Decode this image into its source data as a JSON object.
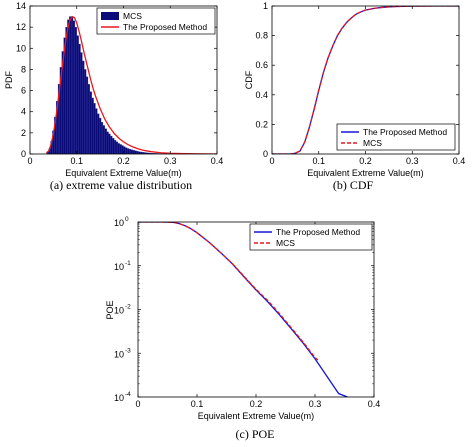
{
  "chart_data": [
    {
      "type": "bar",
      "caption": "(a) extreme value distribution",
      "xlabel": "Equivalent Extreme Value(m)",
      "ylabel": "PDF",
      "xlim": [
        0,
        0.4
      ],
      "ylim": [
        0,
        14
      ],
      "xticks": [
        "0",
        "0.1",
        "0.2",
        "0.3",
        "0.4"
      ],
      "yticks": [
        "0",
        "2",
        "4",
        "6",
        "8",
        "10",
        "12",
        "14"
      ],
      "legend_position": "top-right",
      "colors": {
        "bars": "#0a0a78",
        "line": "#e8191d"
      },
      "series": [
        {
          "name": "MCS",
          "kind": "histogram",
          "bin_width": 0.004,
          "x": [
            0.038,
            0.042,
            0.046,
            0.05,
            0.054,
            0.058,
            0.062,
            0.066,
            0.07,
            0.074,
            0.078,
            0.082,
            0.086,
            0.09,
            0.094,
            0.098,
            0.102,
            0.106,
            0.11,
            0.114,
            0.118,
            0.122,
            0.126,
            0.13,
            0.134,
            0.138,
            0.142,
            0.146,
            0.15,
            0.154,
            0.158,
            0.162,
            0.166,
            0.17,
            0.174,
            0.178,
            0.182,
            0.186,
            0.19,
            0.194,
            0.198,
            0.202,
            0.206,
            0.21,
            0.214,
            0.218,
            0.222,
            0.226,
            0.23,
            0.234,
            0.238,
            0.242,
            0.246,
            0.25,
            0.254,
            0.258,
            0.262,
            0.266,
            0.27,
            0.274,
            0.278,
            0.282,
            0.286,
            0.29,
            0.294,
            0.298
          ],
          "values": [
            0.2,
            0.5,
            1.2,
            2.2,
            3.5,
            5.0,
            6.6,
            8.2,
            9.7,
            11.0,
            12.0,
            12.7,
            13.0,
            13.0,
            12.6,
            12.0,
            11.2,
            10.4,
            9.6,
            8.8,
            8.0,
            7.3,
            6.6,
            5.9,
            5.3,
            4.8,
            4.3,
            3.8,
            3.4,
            3.0,
            2.7,
            2.4,
            2.1,
            1.9,
            1.7,
            1.5,
            1.3,
            1.15,
            1.0,
            0.9,
            0.8,
            0.7,
            0.6,
            0.52,
            0.45,
            0.4,
            0.35,
            0.3,
            0.26,
            0.22,
            0.19,
            0.16,
            0.14,
            0.12,
            0.1,
            0.09,
            0.08,
            0.07,
            0.06,
            0.05,
            0.045,
            0.04,
            0.035,
            0.03,
            0.025,
            0.02
          ]
        },
        {
          "name": "The Proposed Method",
          "kind": "line",
          "x": [
            0.035,
            0.04,
            0.045,
            0.05,
            0.055,
            0.06,
            0.065,
            0.07,
            0.075,
            0.08,
            0.085,
            0.09,
            0.095,
            0.1,
            0.105,
            0.11,
            0.115,
            0.12,
            0.125,
            0.13,
            0.135,
            0.14,
            0.15,
            0.16,
            0.17,
            0.18,
            0.19,
            0.2,
            0.21,
            0.22,
            0.23,
            0.24,
            0.25,
            0.26,
            0.28,
            0.3,
            0.32,
            0.35,
            0.4
          ],
          "values": [
            0.1,
            0.3,
            0.9,
            1.9,
            3.3,
            5.0,
            6.8,
            8.6,
            10.3,
            11.7,
            12.6,
            13.0,
            12.9,
            12.4,
            11.6,
            10.7,
            9.7,
            8.8,
            7.9,
            7.0,
            6.2,
            5.5,
            4.3,
            3.3,
            2.55,
            1.95,
            1.5,
            1.15,
            0.88,
            0.67,
            0.51,
            0.38,
            0.29,
            0.22,
            0.12,
            0.07,
            0.04,
            0.02,
            0.0
          ]
        }
      ]
    },
    {
      "type": "line",
      "caption": "(b) CDF",
      "xlabel": "Equivalent Extreme Value(m)",
      "ylabel": "CDF",
      "xlim": [
        0,
        0.4
      ],
      "ylim": [
        0,
        1
      ],
      "xticks": [
        "0",
        "0.1",
        "0.2",
        "0.3",
        "0.4"
      ],
      "yticks": [
        "0",
        "0.2",
        "0.4",
        "0.6",
        "0.8",
        "1"
      ],
      "legend_position": "bottom-right",
      "series": [
        {
          "name": "The Proposed Method",
          "color": "#1515d6",
          "dash": "solid",
          "x": [
            0.0,
            0.04,
            0.05,
            0.06,
            0.07,
            0.08,
            0.09,
            0.1,
            0.11,
            0.12,
            0.13,
            0.14,
            0.15,
            0.16,
            0.17,
            0.18,
            0.19,
            0.2,
            0.22,
            0.24,
            0.26,
            0.28,
            0.3,
            0.35,
            0.4
          ],
          "values": [
            0.0,
            0.0,
            0.005,
            0.02,
            0.08,
            0.18,
            0.3,
            0.43,
            0.55,
            0.65,
            0.73,
            0.8,
            0.85,
            0.89,
            0.92,
            0.945,
            0.96,
            0.972,
            0.985,
            0.992,
            0.996,
            0.998,
            0.999,
            1.0,
            1.0
          ]
        },
        {
          "name": "MCS",
          "color": "#e8191d",
          "dash": "dashed",
          "x": [
            0.0,
            0.04,
            0.05,
            0.06,
            0.07,
            0.08,
            0.09,
            0.1,
            0.11,
            0.12,
            0.13,
            0.14,
            0.15,
            0.16,
            0.17,
            0.18,
            0.19,
            0.2,
            0.22,
            0.24,
            0.26,
            0.28,
            0.3,
            0.35,
            0.4
          ],
          "values": [
            0.0,
            0.0,
            0.006,
            0.022,
            0.082,
            0.182,
            0.302,
            0.432,
            0.552,
            0.651,
            0.731,
            0.801,
            0.851,
            0.891,
            0.921,
            0.946,
            0.961,
            0.973,
            0.985,
            0.992,
            0.996,
            0.998,
            0.999,
            1.0,
            1.0
          ]
        }
      ]
    },
    {
      "type": "line",
      "caption": "(c) POE",
      "xlabel": "Equivalent Extreme Value(m)",
      "ylabel": "POE",
      "xlim": [
        0,
        0.4
      ],
      "ylim": [
        0.0001,
        1
      ],
      "y_scale": "log",
      "xticks": [
        "0",
        "0.1",
        "0.2",
        "0.3",
        "0.4"
      ],
      "yticks": [
        "10",
        "10",
        "10",
        "10",
        "10"
      ],
      "ytick_exponents": [
        "-4",
        "-3",
        "-2",
        "-1",
        "0"
      ],
      "ytick_values": [
        0.0001,
        0.001,
        0.01,
        0.1,
        1
      ],
      "legend_position": "top-right",
      "series": [
        {
          "name": "The Proposed Method",
          "color": "#1515d6",
          "dash": "solid",
          "x": [
            0.0,
            0.04,
            0.05,
            0.06,
            0.07,
            0.08,
            0.09,
            0.1,
            0.12,
            0.14,
            0.16,
            0.18,
            0.2,
            0.22,
            0.24,
            0.26,
            0.28,
            0.3,
            0.32,
            0.34,
            0.355
          ],
          "values": [
            1.0,
            1.0,
            0.995,
            0.98,
            0.92,
            0.82,
            0.7,
            0.57,
            0.35,
            0.2,
            0.11,
            0.055,
            0.028,
            0.015,
            0.0075,
            0.0036,
            0.0017,
            0.00075,
            0.0003,
            0.00012,
            0.0001
          ]
        },
        {
          "name": "MCS",
          "color": "#e8191d",
          "dash": "dashed",
          "x": [
            0.0,
            0.04,
            0.05,
            0.06,
            0.07,
            0.08,
            0.09,
            0.1,
            0.12,
            0.14,
            0.16,
            0.18,
            0.2,
            0.22,
            0.24,
            0.26,
            0.28,
            0.3,
            0.305
          ],
          "values": [
            1.0,
            1.0,
            0.994,
            0.978,
            0.918,
            0.818,
            0.698,
            0.568,
            0.348,
            0.2,
            0.112,
            0.057,
            0.029,
            0.016,
            0.008,
            0.0038,
            0.0018,
            0.0008,
            0.0007
          ]
        }
      ]
    }
  ]
}
